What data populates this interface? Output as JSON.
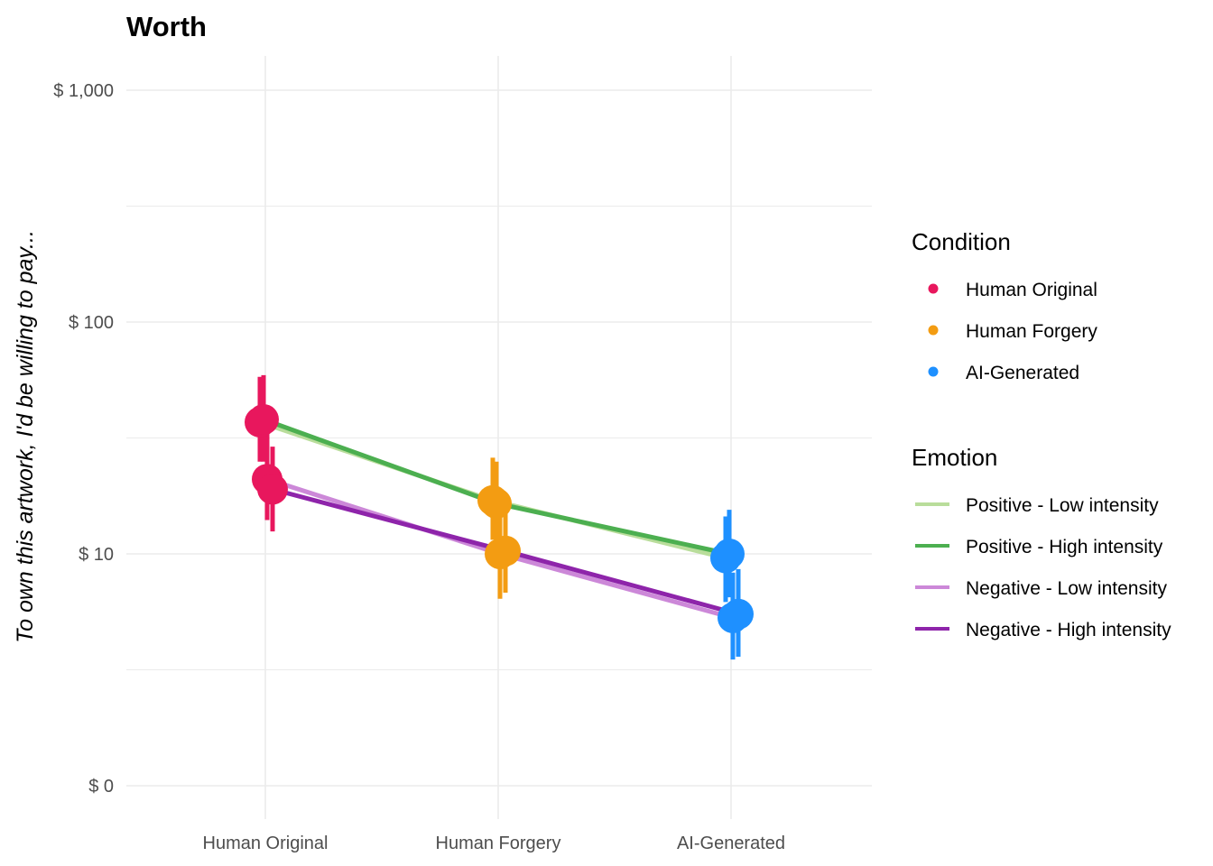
{
  "chart_data": {
    "type": "line",
    "title": "Worth",
    "xlabel": "",
    "ylabel": "To own this artwork, I'd be willing to pay...",
    "y_scale": "log",
    "ylim": [
      1,
      1200
    ],
    "y_tick_labels": [
      "$ 0",
      "$ 10",
      "$ 100",
      "$ 1,000"
    ],
    "y_tick_values": [
      1,
      10,
      100,
      1000
    ],
    "categories": [
      "Human Original",
      "Human Forgery",
      "AI-Generated"
    ],
    "grid": true,
    "legend_position": "right",
    "condition_legend": {
      "title": "Condition",
      "entries": [
        {
          "label": "Human Original",
          "color": "#e8175d"
        },
        {
          "label": "Human Forgery",
          "color": "#f39c12"
        },
        {
          "label": "AI-Generated",
          "color": "#1e90ff"
        }
      ]
    },
    "emotion_legend": {
      "title": "Emotion",
      "entries": [
        {
          "label": "Positive - Low intensity",
          "color": "#b9dd9b"
        },
        {
          "label": "Positive - High intensity",
          "color": "#4caf50"
        },
        {
          "label": "Negative - Low intensity",
          "color": "#cc88d8"
        },
        {
          "label": "Negative - High intensity",
          "color": "#8e24aa"
        }
      ]
    },
    "series": [
      {
        "name": "Positive - Low intensity",
        "color": "#b9dd9b",
        "values": [
          37,
          17,
          9.6
        ],
        "lower": [
          25,
          11.5,
          6.2
        ],
        "upper": [
          58,
          26,
          14.5
        ]
      },
      {
        "name": "Positive - High intensity",
        "color": "#4caf50",
        "values": [
          38,
          16.5,
          10
        ],
        "lower": [
          25,
          11,
          6.5
        ],
        "upper": [
          59,
          25,
          15.5
        ]
      },
      {
        "name": "Negative - Low intensity",
        "color": "#cc88d8",
        "values": [
          21,
          10,
          5.3
        ],
        "lower": [
          14,
          6.4,
          3.5
        ],
        "upper": [
          33,
          16,
          8.3
        ]
      },
      {
        "name": "Negative - High intensity",
        "color": "#8e24aa",
        "values": [
          19,
          10.3,
          5.5
        ],
        "lower": [
          12.5,
          6.8,
          3.6
        ],
        "upper": [
          29,
          16,
          8.6
        ]
      }
    ]
  }
}
